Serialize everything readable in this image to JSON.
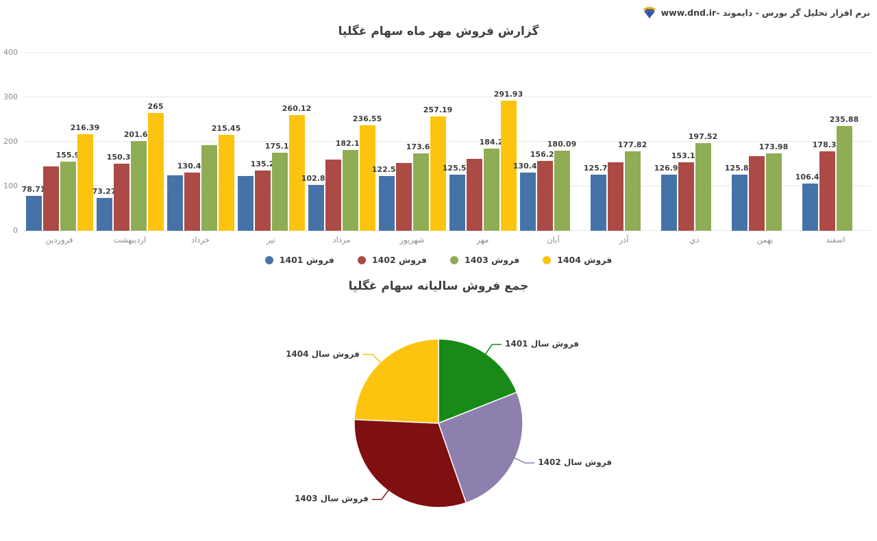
{
  "header": {
    "brand_text": "نرم افزار تحلیل گر بورس - دایموند -www.dnd.ir"
  },
  "bar_chart": {
    "title": "گزارش فروش مهر ماه سهام غگلپا"
  },
  "pie_chart": {
    "title": "جمع فروش سالیانه سهام غگلپا"
  },
  "chart_data": [
    {
      "type": "bar",
      "title": "گزارش فروش مهر ماه سهام غگلپا",
      "categories": [
        "فروردین",
        "اردیبهشت",
        "خرداد",
        "تیر",
        "مرداد",
        "شهریور",
        "مهر",
        "آبان",
        "آذر",
        "دي",
        "بهمن",
        "اسفند"
      ],
      "ylabel": "",
      "xlabel": "",
      "ylim": [
        0,
        400
      ],
      "y_ticks": [
        0,
        100,
        200,
        300,
        400
      ],
      "grid": true,
      "legend_position": "bottom",
      "series": [
        {
          "name": "فروش 1401",
          "color": "#4673a7",
          "values": [
            78.71,
            73.27,
            124,
            123.5,
            102.88,
            122.54,
            125.58,
            130.41,
            125.73,
            126.94,
            125.86,
            106.41
          ],
          "labels": [
            "78.71",
            "73.27",
            "",
            "",
            "102.88",
            "122.54",
            "125.58",
            "130.41",
            "125.73",
            "126.94",
            "125.86",
            "106.41"
          ]
        },
        {
          "name": "فروش 1402",
          "color": "#ac4a45",
          "values": [
            144.5,
            150.39,
            130.45,
            135.2,
            159.5,
            152.5,
            161,
            156.29,
            154,
            153.19,
            168,
            178.31
          ],
          "labels": [
            "",
            "150.39",
            "130.45",
            "135.2",
            "",
            "",
            "",
            "156.29",
            "",
            "153.19",
            "",
            "178.31"
          ]
        },
        {
          "name": "فروش 1403",
          "color": "#8fad55",
          "values": [
            155.9,
            201.66,
            193,
            175.17,
            182.16,
            173.69,
            184.2,
            180.09,
            177.82,
            197.52,
            173.98,
            235.88
          ],
          "labels": [
            "155.9",
            "201.66",
            "",
            "175.17",
            "182.16",
            "173.69",
            "184.2",
            "180.09",
            "177.82",
            "197.52",
            "173.98",
            "235.88"
          ]
        },
        {
          "name": "فروش 1404",
          "color": "#fdc40f",
          "values": [
            216.39,
            265,
            215.45,
            260.12,
            236.55,
            257.19,
            291.93,
            null,
            null,
            null,
            null,
            null
          ],
          "labels": [
            "216.39",
            "265",
            "215.45",
            "260.12",
            "236.55",
            "257.19",
            "291.93",
            "",
            "",
            "",
            "",
            ""
          ]
        }
      ]
    },
    {
      "type": "pie",
      "title": "جمع فروش سالیانه سهام غگلپا",
      "labels": [
        "فروش سال 1401",
        "فروش سال 1402",
        "فروش سال 1403",
        "فروش سال 1404"
      ],
      "values_percent": [
        19.0,
        25.7,
        31.0,
        24.3
      ],
      "colors": [
        "#188a18",
        "#8d7fae",
        "#800f10",
        "#fdc40f"
      ],
      "start_angle_deg": 0,
      "direction": "clockwise",
      "legend_position": "none"
    }
  ]
}
